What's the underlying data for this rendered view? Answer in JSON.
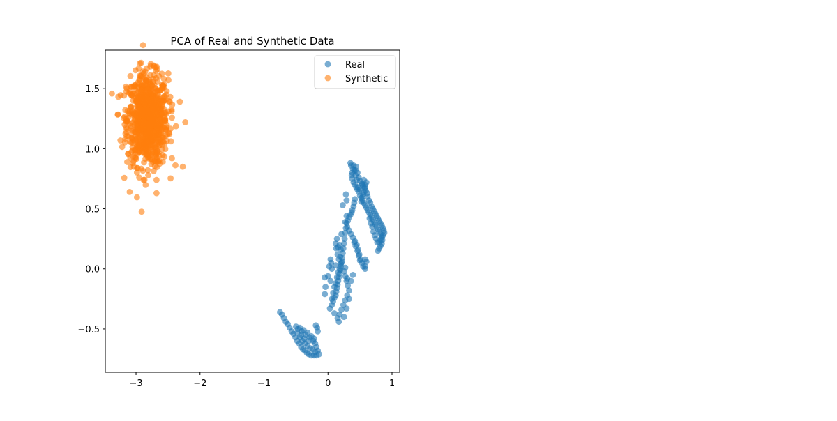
{
  "chart_data": {
    "type": "scatter",
    "title": "PCA of Real and Synthetic Data",
    "xlabel": "",
    "ylabel": "",
    "xlim": [
      -3.48,
      1.12
    ],
    "ylim": [
      -0.86,
      1.82
    ],
    "x_ticks": [
      {
        "value": -3,
        "label": "−3"
      },
      {
        "value": -2,
        "label": "−2"
      },
      {
        "value": -1,
        "label": "−1"
      },
      {
        "value": 0,
        "label": "0"
      },
      {
        "value": 1,
        "label": "1"
      }
    ],
    "y_ticks": [
      {
        "value": -0.5,
        "label": "−0.5"
      },
      {
        "value": 0.0,
        "label": "0.0"
      },
      {
        "value": 0.5,
        "label": "0.5"
      },
      {
        "value": 1.0,
        "label": "1.0"
      },
      {
        "value": 1.5,
        "label": "1.5"
      }
    ],
    "grid": false,
    "legend_position": "top-right",
    "series": [
      {
        "name": "Real",
        "color": "#1f77b4",
        "alpha": 0.6,
        "points": [
          [
            -0.75,
            -0.36
          ],
          [
            -0.72,
            -0.38
          ],
          [
            -0.69,
            -0.41
          ],
          [
            -0.66,
            -0.44
          ],
          [
            -0.63,
            -0.46
          ],
          [
            -0.6,
            -0.49
          ],
          [
            -0.57,
            -0.52
          ],
          [
            -0.54,
            -0.54
          ],
          [
            -0.51,
            -0.57
          ],
          [
            -0.48,
            -0.6
          ],
          [
            -0.45,
            -0.62
          ],
          [
            -0.42,
            -0.65
          ],
          [
            -0.39,
            -0.67
          ],
          [
            -0.36,
            -0.68
          ],
          [
            -0.33,
            -0.7
          ],
          [
            -0.3,
            -0.71
          ],
          [
            -0.26,
            -0.72
          ],
          [
            -0.22,
            -0.72
          ],
          [
            -0.18,
            -0.72
          ],
          [
            -0.14,
            -0.71
          ],
          [
            -0.5,
            -0.48
          ],
          [
            -0.47,
            -0.5
          ],
          [
            -0.44,
            -0.49
          ],
          [
            -0.41,
            -0.52
          ],
          [
            -0.38,
            -0.51
          ],
          [
            -0.35,
            -0.55
          ],
          [
            -0.32,
            -0.53
          ],
          [
            -0.29,
            -0.57
          ],
          [
            -0.26,
            -0.56
          ],
          [
            -0.23,
            -0.6
          ],
          [
            -0.2,
            -0.62
          ],
          [
            -0.18,
            -0.65
          ],
          [
            -0.16,
            -0.68
          ],
          [
            -0.44,
            -0.57
          ],
          [
            -0.4,
            -0.6
          ],
          [
            -0.36,
            -0.62
          ],
          [
            -0.32,
            -0.64
          ],
          [
            -0.28,
            -0.66
          ],
          [
            -0.24,
            -0.67
          ],
          [
            -0.2,
            -0.69
          ],
          [
            -0.48,
            -0.53
          ],
          [
            -0.17,
            -0.49
          ],
          [
            -0.16,
            -0.52
          ],
          [
            -0.22,
            -0.58
          ],
          [
            -0.3,
            -0.6
          ],
          [
            -0.37,
            -0.58
          ],
          [
            -0.42,
            -0.55
          ],
          [
            0.03,
            -0.33
          ],
          [
            0.06,
            -0.3
          ],
          [
            0.08,
            -0.27
          ],
          [
            0.1,
            -0.24
          ],
          [
            0.12,
            -0.22
          ],
          [
            0.13,
            -0.19
          ],
          [
            0.14,
            -0.16
          ],
          [
            0.15,
            -0.13
          ],
          [
            0.16,
            -0.1
          ],
          [
            0.17,
            -0.07
          ],
          [
            0.18,
            -0.04
          ],
          [
            0.19,
            -0.01
          ],
          [
            0.2,
            0.02
          ],
          [
            0.21,
            0.05
          ],
          [
            0.22,
            0.09
          ],
          [
            0.23,
            0.13
          ],
          [
            0.24,
            0.17
          ],
          [
            0.25,
            0.21
          ],
          [
            0.26,
            0.25
          ],
          [
            0.27,
            0.3
          ],
          [
            0.28,
            0.34
          ],
          [
            0.29,
            0.38
          ],
          [
            0.31,
            0.4
          ],
          [
            0.33,
            0.43
          ],
          [
            0.35,
            0.45
          ],
          [
            0.37,
            0.47
          ],
          [
            0.38,
            0.49
          ],
          [
            0.4,
            0.52
          ],
          [
            0.41,
            0.55
          ],
          [
            0.42,
            0.58
          ],
          [
            0.08,
            -0.2
          ],
          [
            0.1,
            -0.15
          ],
          [
            0.12,
            -0.12
          ],
          [
            0.14,
            -0.07
          ],
          [
            0.16,
            -0.03
          ],
          [
            0.18,
            0.0
          ],
          [
            0.2,
            0.04
          ],
          [
            0.17,
            0.08
          ],
          [
            0.15,
            0.12
          ],
          [
            0.13,
            0.17
          ],
          [
            0.12,
            0.21
          ],
          [
            0.14,
            0.25
          ],
          [
            0.19,
            0.1
          ],
          [
            0.22,
            0.06
          ],
          [
            0.25,
            -0.02
          ],
          [
            0.27,
            -0.06
          ],
          [
            0.29,
            -0.1
          ],
          [
            0.31,
            -0.14
          ],
          [
            0.33,
            -0.18
          ],
          [
            0.3,
            -0.22
          ],
          [
            0.27,
            -0.26
          ],
          [
            0.24,
            -0.3
          ],
          [
            0.21,
            -0.34
          ],
          [
            0.18,
            -0.38
          ],
          [
            0.15,
            -0.41
          ],
          [
            0.1,
            -0.37
          ],
          [
            0.06,
            -0.25
          ],
          [
            0.04,
            -0.1
          ],
          [
            0.02,
            0.02
          ],
          [
            0.0,
            -0.06
          ],
          [
            0.25,
            -0.4
          ],
          [
            0.29,
            -0.33
          ],
          [
            0.33,
            -0.25
          ],
          [
            0.36,
            -0.1
          ],
          [
            0.39,
            -0.05
          ],
          [
            0.17,
            -0.44
          ],
          [
            0.05,
            0.05
          ],
          [
            0.29,
            0.44
          ],
          [
            0.27,
            0.39
          ],
          [
            0.3,
            0.35
          ],
          [
            0.33,
            0.32
          ],
          [
            0.36,
            0.29
          ],
          [
            0.39,
            0.26
          ],
          [
            0.42,
            0.23
          ],
          [
            0.45,
            0.2
          ],
          [
            0.47,
            0.16
          ],
          [
            0.49,
            0.12
          ],
          [
            0.51,
            0.08
          ],
          [
            0.53,
            0.05
          ],
          [
            0.55,
            0.02
          ],
          [
            0.58,
            0.0
          ],
          [
            0.41,
            0.22
          ],
          [
            0.43,
            0.19
          ],
          [
            0.46,
            0.15
          ],
          [
            0.48,
            0.11
          ],
          [
            0.5,
            0.07
          ],
          [
            0.6,
            0.06
          ],
          [
            0.37,
            0.78
          ],
          [
            0.38,
            0.75
          ],
          [
            0.4,
            0.72
          ],
          [
            0.42,
            0.7
          ],
          [
            0.44,
            0.68
          ],
          [
            0.46,
            0.66
          ],
          [
            0.48,
            0.64
          ],
          [
            0.5,
            0.61
          ],
          [
            0.52,
            0.59
          ],
          [
            0.54,
            0.57
          ],
          [
            0.56,
            0.55
          ],
          [
            0.58,
            0.53
          ],
          [
            0.6,
            0.51
          ],
          [
            0.62,
            0.49
          ],
          [
            0.64,
            0.47
          ],
          [
            0.66,
            0.45
          ],
          [
            0.68,
            0.43
          ],
          [
            0.7,
            0.41
          ],
          [
            0.72,
            0.39
          ],
          [
            0.74,
            0.37
          ],
          [
            0.76,
            0.35
          ],
          [
            0.78,
            0.33
          ],
          [
            0.8,
            0.31
          ],
          [
            0.82,
            0.29
          ],
          [
            0.84,
            0.27
          ],
          [
            0.85,
            0.24
          ],
          [
            0.84,
            0.21
          ],
          [
            0.82,
            0.19
          ],
          [
            0.8,
            0.17
          ],
          [
            0.78,
            0.15
          ],
          [
            0.4,
            0.86
          ],
          [
            0.43,
            0.82
          ],
          [
            0.46,
            0.8
          ],
          [
            0.48,
            0.76
          ],
          [
            0.5,
            0.73
          ],
          [
            0.53,
            0.71
          ],
          [
            0.55,
            0.69
          ],
          [
            0.57,
            0.67
          ],
          [
            0.59,
            0.65
          ],
          [
            0.61,
            0.63
          ],
          [
            0.62,
            0.6
          ],
          [
            0.64,
            0.57
          ],
          [
            0.66,
            0.55
          ],
          [
            0.68,
            0.52
          ],
          [
            0.7,
            0.5
          ],
          [
            0.72,
            0.48
          ],
          [
            0.74,
            0.46
          ],
          [
            0.76,
            0.44
          ],
          [
            0.78,
            0.42
          ],
          [
            0.8,
            0.4
          ],
          [
            0.82,
            0.38
          ],
          [
            0.84,
            0.36
          ],
          [
            0.86,
            0.34
          ],
          [
            0.87,
            0.32
          ],
          [
            0.88,
            0.3
          ],
          [
            0.86,
            0.28
          ],
          [
            0.84,
            0.26
          ],
          [
            0.82,
            0.24
          ],
          [
            0.8,
            0.22
          ],
          [
            0.58,
            0.7
          ],
          [
            0.52,
            0.56
          ],
          [
            0.54,
            0.6
          ],
          [
            0.56,
            0.64
          ],
          [
            0.58,
            0.68
          ],
          [
            0.6,
            0.72
          ],
          [
            0.56,
            0.74
          ],
          [
            0.53,
            0.7
          ],
          [
            0.5,
            0.66
          ],
          [
            0.47,
            0.68
          ],
          [
            0.45,
            0.74
          ],
          [
            0.43,
            0.78
          ],
          [
            0.41,
            0.82
          ],
          [
            0.44,
            0.85
          ],
          [
            0.65,
            0.42
          ],
          [
            0.67,
            0.38
          ],
          [
            0.69,
            0.35
          ],
          [
            0.71,
            0.31
          ],
          [
            0.73,
            0.28
          ],
          [
            0.75,
            0.25
          ],
          [
            0.77,
            0.22
          ],
          [
            0.28,
            0.62
          ],
          [
            0.29,
            0.57
          ],
          [
            0.23,
            0.53
          ],
          [
            0.21,
            0.29
          ],
          [
            0.2,
            0.16
          ],
          [
            0.18,
            0.2
          ],
          [
            0.16,
            0.18
          ],
          [
            0.06,
            0.0
          ],
          [
            0.58,
            0.02
          ],
          [
            0.58,
            0.08
          ],
          [
            0.36,
            0.86
          ],
          [
            0.39,
            0.83
          ],
          [
            0.55,
            0.62
          ],
          [
            -0.05,
            -0.07
          ],
          [
            -0.04,
            -0.15
          ],
          [
            -0.05,
            -0.21
          ],
          [
            0.04,
            0.08
          ],
          [
            0.12,
            0.03
          ],
          [
            0.27,
            0.01
          ],
          [
            0.3,
            -0.08
          ],
          [
            -0.19,
            -0.47
          ],
          [
            0.35,
            0.88
          ],
          [
            0.38,
            0.8
          ]
        ]
      },
      {
        "name": "Synthetic",
        "color": "#ff7f0e",
        "alpha": 0.6,
        "points": []
      }
    ]
  }
}
